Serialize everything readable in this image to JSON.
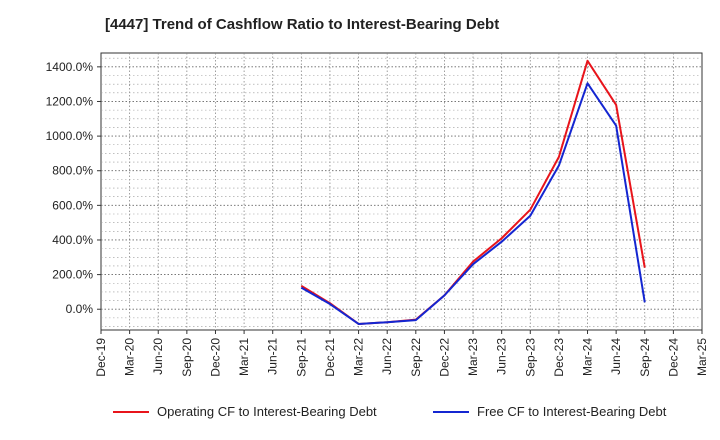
{
  "chart_data": {
    "type": "line",
    "title": "[4447]  Trend of Cashflow Ratio to Interest-Bearing Debt",
    "xlabel": "",
    "ylabel": "",
    "x_categories": [
      "Dec-19",
      "Mar-20",
      "Jun-20",
      "Sep-20",
      "Dec-20",
      "Mar-21",
      "Jun-21",
      "Sep-21",
      "Dec-21",
      "Mar-22",
      "Jun-22",
      "Sep-22",
      "Dec-22",
      "Mar-23",
      "Jun-23",
      "Sep-23",
      "Dec-23",
      "Mar-24",
      "Jun-24",
      "Sep-24",
      "Dec-24",
      "Mar-25"
    ],
    "y_ticks": [
      "0.0%",
      "200.0%",
      "400.0%",
      "600.0%",
      "800.0%",
      "1000.0%",
      "1200.0%",
      "1400.0%"
    ],
    "ylim": [
      -120,
      1480
    ],
    "grid": true,
    "legend_position": "bottom",
    "series": [
      {
        "name": "Operating CF to Interest-Bearing Debt",
        "color": "#e8141b",
        "points": [
          [
            "Sep-21",
            135
          ],
          [
            "Dec-21",
            35
          ],
          [
            "Mar-22",
            -85
          ],
          [
            "Jun-22",
            -75
          ],
          [
            "Sep-22",
            -60
          ],
          [
            "Dec-22",
            80
          ],
          [
            "Mar-23",
            275
          ],
          [
            "Jun-23",
            410
          ],
          [
            "Sep-23",
            575
          ],
          [
            "Dec-23",
            880
          ],
          [
            "Mar-24",
            1435
          ],
          [
            "Jun-24",
            1180
          ],
          [
            "Sep-24",
            240
          ]
        ]
      },
      {
        "name": "Free CF to Interest-Bearing Debt",
        "color": "#1426d1",
        "points": [
          [
            "Sep-21",
            125
          ],
          [
            "Dec-21",
            30
          ],
          [
            "Mar-22",
            -85
          ],
          [
            "Jun-22",
            -75
          ],
          [
            "Sep-22",
            -63
          ],
          [
            "Dec-22",
            80
          ],
          [
            "Mar-23",
            260
          ],
          [
            "Jun-23",
            390
          ],
          [
            "Sep-23",
            540
          ],
          [
            "Dec-23",
            830
          ],
          [
            "Mar-24",
            1305
          ],
          [
            "Jun-24",
            1060
          ],
          [
            "Sep-24",
            40
          ]
        ]
      }
    ]
  }
}
